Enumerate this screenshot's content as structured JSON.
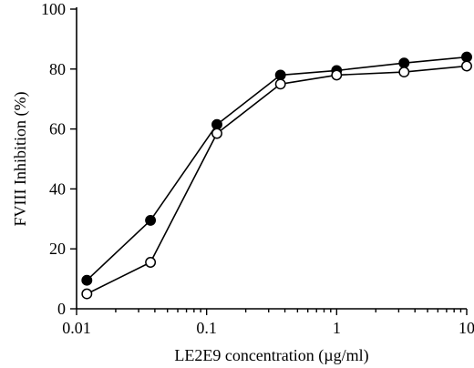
{
  "chart_data": {
    "type": "line",
    "title": "",
    "xlabel": "LE2E9 concentration (µg/ml)",
    "ylabel": "FVIII Inhibition (%)",
    "x_scale": "log",
    "xlim": [
      0.01,
      10
    ],
    "ylim": [
      0,
      100
    ],
    "x_ticks": [
      0.01,
      0.1,
      1,
      10
    ],
    "x_tick_labels": [
      "0.01",
      "0.1",
      "1",
      "10"
    ],
    "y_ticks": [
      0,
      20,
      40,
      60,
      80,
      100
    ],
    "y_tick_labels": [
      "0",
      "20",
      "40",
      "60",
      "80",
      "100"
    ],
    "grid": false,
    "legend": false,
    "series": [
      {
        "marker": "filled-circle",
        "color": "#000000",
        "x": [
          0.012,
          0.037,
          0.12,
          0.37,
          1.0,
          3.3,
          10
        ],
        "y": [
          9.5,
          29.5,
          61.5,
          78,
          79.5,
          82,
          84
        ]
      },
      {
        "marker": "open-circle",
        "color": "#000000",
        "x": [
          0.012,
          0.037,
          0.12,
          0.37,
          1.0,
          3.3,
          10
        ],
        "y": [
          5,
          15.5,
          58.5,
          75,
          78,
          79,
          81
        ]
      }
    ]
  }
}
